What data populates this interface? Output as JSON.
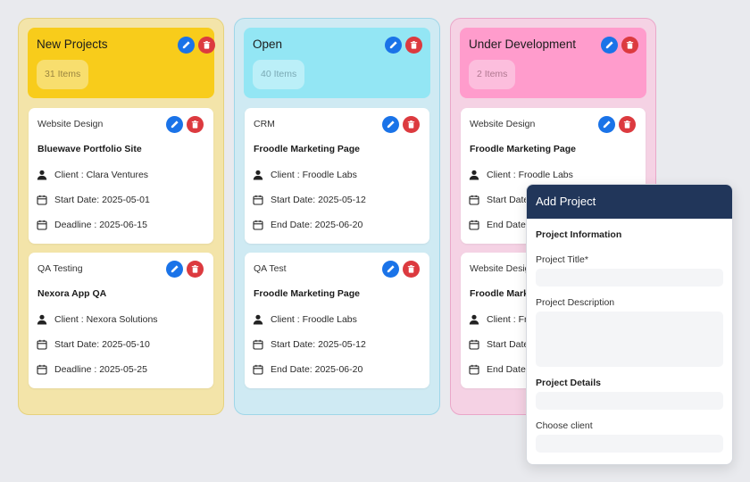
{
  "colors": {
    "new_projects_col_bg": "#f3e4a9",
    "new_projects_header": "#f8cc1b",
    "open_col_bg": "#cfeaf3",
    "open_header": "#93e6f4",
    "under_dev_col_bg": "#f5d2e4",
    "under_dev_header": "#ff9ccc",
    "edit_button": "#1a73e8",
    "delete_button": "#dc3a3f",
    "modal_header": "#21365a"
  },
  "icons": {
    "edit": "pencil-icon",
    "delete": "trash-icon",
    "client": "user-icon",
    "date": "calendar-icon"
  },
  "columns": [
    {
      "title": "New Projects",
      "count": "31 Items",
      "cards": [
        {
          "category": "Website Design",
          "title": "Bluewave Portfolio Site",
          "client": "Client : Clara Ventures",
          "start": "Start Date: 2025-05-01",
          "end": "Deadline : 2025-06-15"
        },
        {
          "category": "QA Testing",
          "title": "Nexora App QA",
          "client": "Client : Nexora Solutions",
          "start": "Start Date: 2025-05-10",
          "end": "Deadline : 2025-05-25"
        }
      ]
    },
    {
      "title": "Open",
      "count": "40 Items",
      "cards": [
        {
          "category": "CRM",
          "title": "Froodle Marketing Page",
          "client": "Client : Froodle Labs",
          "start": "Start Date: 2025-05-12",
          "end": "End Date: 2025-06-20"
        },
        {
          "category": "QA Test",
          "title": "Froodle Marketing Page",
          "client": "Client : Froodle Labs",
          "start": "Start Date: 2025-05-12",
          "end": "End Date: 2025-06-20"
        }
      ]
    },
    {
      "title": "Under Development",
      "count": "2 Items",
      "cards": [
        {
          "category": "Website Design",
          "title": "Froodle Marketing Page",
          "client": "Client : Froodle Labs",
          "start": "Start Date",
          "end": "End Date"
        },
        {
          "category": "Website Desig",
          "title": "Froodle Mark",
          "client": "Client : Fr",
          "start": "Start Date",
          "end": "End Date"
        }
      ]
    }
  ],
  "modal": {
    "title": "Add Project",
    "section_info": "Project Information",
    "label_title": "Project Title*",
    "label_description": "Project Description",
    "section_details": "Project Details",
    "label_client": "Choose client"
  }
}
